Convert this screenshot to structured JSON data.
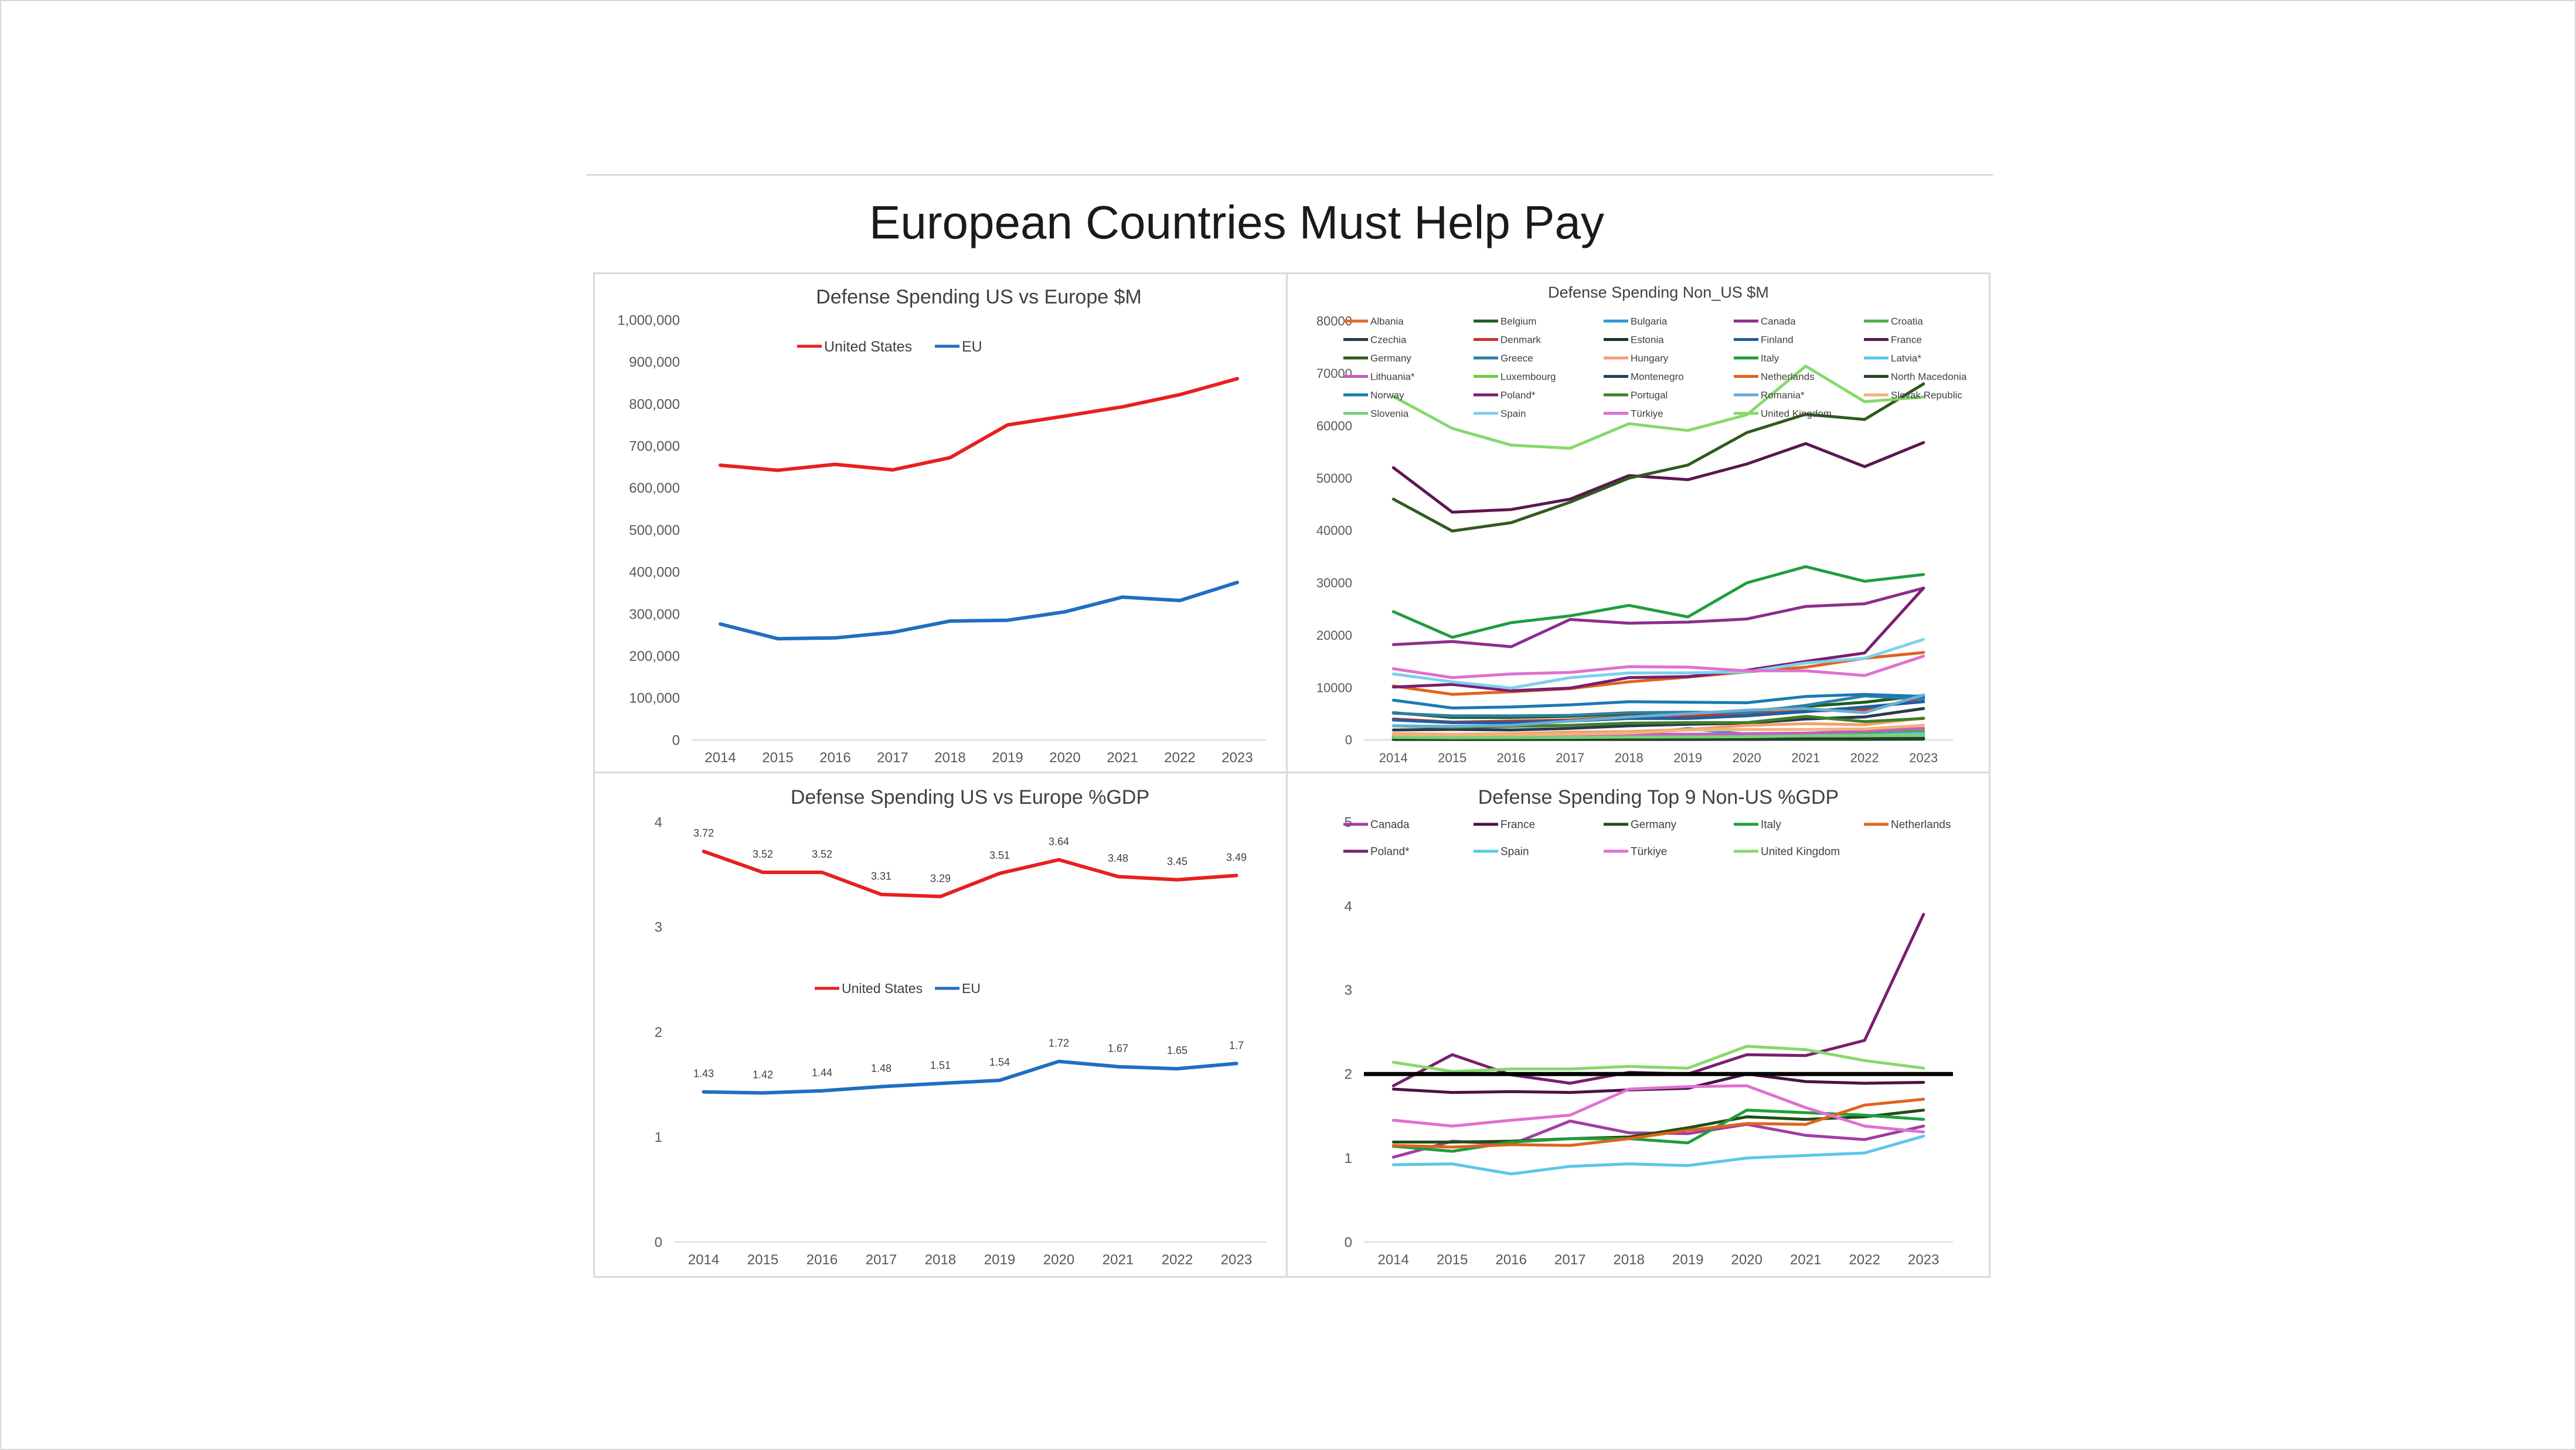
{
  "slide": {
    "title": "European Countries Must Help Pay"
  },
  "chart_data": [
    {
      "id": "us-eu-usd",
      "type": "line",
      "title": "Defense Spending US vs Europe $M",
      "x": [
        "2014",
        "2015",
        "2016",
        "2017",
        "2018",
        "2019",
        "2020",
        "2021",
        "2022",
        "2023"
      ],
      "ylim": [
        0,
        1000000
      ],
      "yticks": [
        "0",
        "100,000",
        "200,000",
        "300,000",
        "400,000",
        "500,000",
        "600,000",
        "700,000",
        "800,000",
        "900,000",
        "1,000,000"
      ],
      "grid": false,
      "legend_position": "top",
      "series": [
        {
          "name": "United States",
          "color": "#e8201f",
          "values": [
            654000,
            642000,
            656000,
            643000,
            672000,
            750000,
            771000,
            793000,
            822000,
            860000
          ]
        },
        {
          "name": "EU",
          "color": "#1f6fc0",
          "values": [
            276000,
            241000,
            243000,
            256000,
            283000,
            285000,
            305000,
            340000,
            332000,
            375000
          ]
        }
      ]
    },
    {
      "id": "non-us-usd",
      "type": "line",
      "title": "Defense Spending Non_US $M",
      "x": [
        "2014",
        "2015",
        "2016",
        "2017",
        "2018",
        "2019",
        "2020",
        "2021",
        "2022",
        "2023"
      ],
      "ylim": [
        0,
        80000
      ],
      "yticks": [
        "0",
        "10000",
        "20000",
        "30000",
        "40000",
        "50000",
        "60000",
        "70000",
        "80000"
      ],
      "grid": false,
      "legend_position": "top",
      "series": [
        {
          "name": "Albania",
          "color": "#e06c2b",
          "values": [
            180,
            150,
            140,
            160,
            190,
            200,
            220,
            250,
            290,
            370
          ]
        },
        {
          "name": "Belgium",
          "color": "#1b5e20",
          "values": [
            5200,
            4300,
            4300,
            4500,
            5000,
            5100,
            5500,
            6400,
            7200,
            8500
          ]
        },
        {
          "name": "Bulgaria",
          "color": "#2e9ad0",
          "values": [
            750,
            650,
            690,
            750,
            900,
            2200,
            1100,
            1200,
            1300,
            1700
          ]
        },
        {
          "name": "Canada",
          "color": "#8e2d8e",
          "values": [
            18200,
            18800,
            17800,
            23000,
            22300,
            22500,
            23100,
            25500,
            26000,
            29000
          ]
        },
        {
          "name": "Croatia",
          "color": "#4cae4c",
          "values": [
            1000,
            870,
            800,
            900,
            1000,
            1000,
            1100,
            1300,
            1400,
            1600
          ]
        },
        {
          "name": "Czechia",
          "color": "#2a3a4a",
          "values": [
            1900,
            2000,
            1900,
            2200,
            2700,
            3000,
            3200,
            4000,
            4400,
            6000
          ]
        },
        {
          "name": "Denmark",
          "color": "#c0392b",
          "values": [
            4000,
            3400,
            3600,
            3800,
            4500,
            4600,
            5000,
            5500,
            5800,
            8000
          ]
        },
        {
          "name": "Estonia",
          "color": "#0d3b1e",
          "values": [
            500,
            480,
            500,
            540,
            620,
            640,
            700,
            760,
            900,
            1200
          ]
        },
        {
          "name": "Finland",
          "color": "#1f5fa0",
          "values": [
            3800,
            3300,
            3300,
            3600,
            4100,
            4100,
            4600,
            5400,
            6300,
            7300
          ]
        },
        {
          "name": "France",
          "color": "#5c1650",
          "values": [
            52000,
            43500,
            44000,
            46000,
            50500,
            49700,
            52700,
            56600,
            52200,
            56800
          ]
        },
        {
          "name": "Germany",
          "color": "#2f5a1f",
          "values": [
            46000,
            39900,
            41500,
            45400,
            50000,
            52500,
            58700,
            62200,
            61200,
            68000
          ]
        },
        {
          "name": "Greece",
          "color": "#2c7fa3",
          "values": [
            5100,
            4600,
            4600,
            4700,
            5200,
            5300,
            5200,
            6600,
            8400,
            7800
          ]
        },
        {
          "name": "Hungary",
          "color": "#f0a070",
          "values": [
            1200,
            1100,
            1200,
            1500,
            1600,
            2000,
            2800,
            3100,
            2900,
            4200
          ]
        },
        {
          "name": "Italy",
          "color": "#1e9e3e",
          "values": [
            24500,
            19600,
            22400,
            23700,
            25700,
            23500,
            30000,
            33100,
            30300,
            31600
          ]
        },
        {
          "name": "Latvia*",
          "color": "#5bc8e8",
          "values": [
            290,
            290,
            410,
            510,
            700,
            700,
            760,
            820,
            900,
            1200
          ]
        },
        {
          "name": "Lithuania*",
          "color": "#c45ec4",
          "values": [
            420,
            470,
            640,
            810,
            1100,
            1100,
            1200,
            1300,
            1700,
            2200
          ]
        },
        {
          "name": "Luxembourg",
          "color": "#6fcf3f",
          "values": [
            290,
            290,
            290,
            350,
            400,
            390,
            450,
            500,
            550,
            700
          ]
        },
        {
          "name": "Montenegro",
          "color": "#2c3e50",
          "values": [
            80,
            75,
            75,
            80,
            90,
            90,
            100,
            110,
            110,
            150
          ]
        },
        {
          "name": "Netherlands",
          "color": "#e0641b",
          "values": [
            10300,
            8700,
            9200,
            9800,
            11100,
            12000,
            13000,
            13900,
            15600,
            16700
          ]
        },
        {
          "name": "North Macedonia",
          "color": "#224422",
          "values": [
            110,
            100,
            100,
            110,
            130,
            150,
            170,
            220,
            240,
            310
          ]
        },
        {
          "name": "Norway",
          "color": "#1a7ab5",
          "values": [
            7600,
            6100,
            6300,
            6700,
            7300,
            7200,
            7100,
            8300,
            8700,
            8300
          ]
        },
        {
          "name": "Poland*",
          "color": "#7a1f6e",
          "values": [
            10100,
            10600,
            9400,
            9900,
            11900,
            12100,
            13300,
            15000,
            16600,
            29000
          ]
        },
        {
          "name": "Portugal",
          "color": "#3f7f2a",
          "values": [
            2700,
            2400,
            2600,
            2800,
            3200,
            3300,
            3300,
            4500,
            3500,
            4100
          ]
        },
        {
          "name": "Romania*",
          "color": "#6aaed6",
          "values": [
            2700,
            2600,
            2800,
            3600,
            4400,
            5000,
            5700,
            6000,
            5200,
            8600
          ]
        },
        {
          "name": "Slovak Republic",
          "color": "#f3b27a",
          "values": [
            1000,
            990,
            1000,
            1100,
            1300,
            1900,
            2000,
            2000,
            2100,
            2800
          ]
        },
        {
          "name": "Slovenia",
          "color": "#7bd07b",
          "values": [
            480,
            410,
            450,
            480,
            550,
            570,
            620,
            780,
            800,
            860
          ]
        },
        {
          "name": "Spain",
          "color": "#7ed0f0",
          "values": [
            12600,
            11100,
            9900,
            11900,
            12800,
            12800,
            13000,
            14700,
            15600,
            19200
          ]
        },
        {
          "name": "Türkiye",
          "color": "#e070d0",
          "values": [
            13600,
            11900,
            12600,
            12900,
            14000,
            13900,
            13200,
            13200,
            12300,
            16000
          ]
        },
        {
          "name": "United Kingdom",
          "color": "#86d96a",
          "values": [
            65600,
            59500,
            56300,
            55700,
            60400,
            59100,
            62100,
            71400,
            64600,
            65500
          ]
        }
      ]
    },
    {
      "id": "us-eu-gdp",
      "type": "line",
      "title": "Defense Spending US vs Europe %GDP",
      "x": [
        "2014",
        "2015",
        "2016",
        "2017",
        "2018",
        "2019",
        "2020",
        "2021",
        "2022",
        "2023"
      ],
      "ylim": [
        0,
        4
      ],
      "yticks": [
        "0",
        "1",
        "2",
        "3",
        "4"
      ],
      "grid": false,
      "legend_position": "center",
      "series": [
        {
          "name": "United States",
          "color": "#e8201f",
          "values": [
            3.72,
            3.52,
            3.52,
            3.31,
            3.29,
            3.51,
            3.64,
            3.48,
            3.45,
            3.49
          ],
          "labels": [
            "3.72",
            "3.52",
            "3.52",
            "3.31",
            "3.29",
            "3.51",
            "3.64",
            "3.48",
            "3.45",
            "3.49"
          ]
        },
        {
          "name": "EU",
          "color": "#1f6fc0",
          "values": [
            1.43,
            1.42,
            1.44,
            1.48,
            1.51,
            1.54,
            1.72,
            1.67,
            1.65,
            1.7
          ],
          "labels": [
            "1.43",
            "1.42",
            "1.44",
            "1.48",
            "1.51",
            "1.54",
            "1.72",
            "1.67",
            "1.65",
            "1.7"
          ]
        }
      ]
    },
    {
      "id": "top9-gdp",
      "type": "line",
      "title": "Defense Spending Top 9 Non-US %GDP",
      "x": [
        "2014",
        "2015",
        "2016",
        "2017",
        "2018",
        "2019",
        "2020",
        "2021",
        "2022",
        "2023"
      ],
      "ylim": [
        0,
        5
      ],
      "yticks": [
        "0",
        "1",
        "2",
        "3",
        "4",
        "5"
      ],
      "grid": false,
      "legend_position": "top",
      "reference_line": {
        "value": 2,
        "color": "#000000"
      },
      "series": [
        {
          "name": "Canada",
          "color": "#a23da3",
          "values": [
            1.01,
            1.2,
            1.16,
            1.44,
            1.3,
            1.29,
            1.4,
            1.27,
            1.22,
            1.38
          ]
        },
        {
          "name": "France",
          "color": "#4a1245",
          "values": [
            1.82,
            1.78,
            1.79,
            1.78,
            1.81,
            1.83,
            2.0,
            1.91,
            1.89,
            1.9
          ]
        },
        {
          "name": "Germany",
          "color": "#1f4f14",
          "values": [
            1.19,
            1.19,
            1.2,
            1.23,
            1.25,
            1.36,
            1.49,
            1.46,
            1.49,
            1.57
          ]
        },
        {
          "name": "Italy",
          "color": "#1e9e3e",
          "values": [
            1.14,
            1.08,
            1.19,
            1.23,
            1.23,
            1.18,
            1.57,
            1.54,
            1.51,
            1.46
          ]
        },
        {
          "name": "Netherlands",
          "color": "#e0641b",
          "values": [
            1.15,
            1.13,
            1.16,
            1.15,
            1.23,
            1.33,
            1.41,
            1.4,
            1.63,
            1.7
          ]
        },
        {
          "name": "Poland*",
          "color": "#7a1f6e",
          "values": [
            1.86,
            2.23,
            1.99,
            1.89,
            2.02,
            2.0,
            2.23,
            2.22,
            2.4,
            3.9
          ]
        },
        {
          "name": "Spain",
          "color": "#5bc8e8",
          "values": [
            0.92,
            0.93,
            0.81,
            0.9,
            0.93,
            0.91,
            1.0,
            1.03,
            1.06,
            1.26
          ]
        },
        {
          "name": "Türkiye",
          "color": "#e070d0",
          "values": [
            1.45,
            1.38,
            1.45,
            1.51,
            1.82,
            1.85,
            1.86,
            1.6,
            1.38,
            1.31
          ]
        },
        {
          "name": "United Kingdom",
          "color": "#86d96a",
          "values": [
            2.14,
            2.03,
            2.06,
            2.06,
            2.09,
            2.07,
            2.33,
            2.29,
            2.16,
            2.07
          ]
        }
      ]
    }
  ]
}
